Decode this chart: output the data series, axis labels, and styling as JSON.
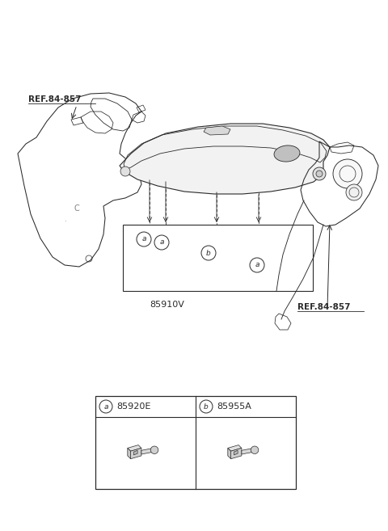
{
  "bg_color": "#ffffff",
  "line_color": "#2a2a2a",
  "ref_color": "#000000",
  "fig_width": 4.8,
  "fig_height": 6.57,
  "ref1_label": "REF.84-857",
  "ref2_label": "REF.84-857",
  "main_label": "85910V",
  "part_a_label": "85920E",
  "part_b_label": "85955A"
}
